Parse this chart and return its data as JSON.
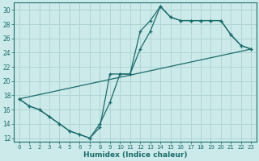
{
  "xlabel": "Humidex (Indice chaleur)",
  "background_color": "#cceaea",
  "grid_color": "#b0d4d4",
  "line_color": "#1a6b6b",
  "xlim": [
    -0.5,
    23.5
  ],
  "ylim": [
    11.5,
    31
  ],
  "xticks": [
    0,
    1,
    2,
    3,
    4,
    5,
    6,
    7,
    8,
    9,
    10,
    11,
    12,
    13,
    14,
    15,
    16,
    17,
    18,
    19,
    20,
    21,
    22,
    23
  ],
  "yticks": [
    12,
    14,
    16,
    18,
    20,
    22,
    24,
    26,
    28,
    30
  ],
  "series1_x": [
    0,
    1,
    2,
    3,
    4,
    5,
    6,
    7,
    8,
    9,
    10,
    11,
    12,
    13,
    14,
    15,
    16,
    17,
    18,
    19,
    20,
    21,
    22,
    23
  ],
  "series1_y": [
    17.5,
    16.5,
    16,
    15,
    14,
    13,
    12.5,
    12,
    14,
    17,
    21,
    21,
    27,
    28.5,
    30.5,
    29,
    28.5,
    28.5,
    28.5,
    28.5,
    28.5,
    26.5,
    25,
    24.5
  ],
  "series2_x": [
    0,
    1,
    2,
    3,
    4,
    5,
    6,
    7,
    8,
    9,
    10,
    11,
    12,
    13,
    14,
    15,
    16,
    17,
    18,
    19,
    20,
    21,
    22,
    23
  ],
  "series2_y": [
    17.5,
    16.5,
    16,
    15,
    14,
    13,
    12.5,
    12,
    13.5,
    21,
    21,
    21,
    24.5,
    27,
    30.5,
    29,
    28.5,
    28.5,
    28.5,
    28.5,
    28.5,
    26.5,
    25,
    24.5
  ],
  "series3_x": [
    0,
    23
  ],
  "series3_y": [
    17.5,
    24.5
  ]
}
